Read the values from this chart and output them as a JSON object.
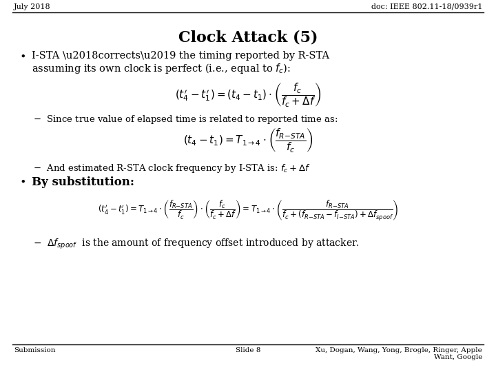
{
  "bg_color": "#ffffff",
  "header_left": "July 2018",
  "header_right": "doc: IEEE 802.11-18/0939r1",
  "title": "Clock Attack (5)",
  "footer_left": "Submission",
  "footer_center": "Slide 8",
  "footer_right": "Xu, Dogan, Wang, Yong, Brogle, Ringer, Apple\nWant, Google",
  "text_color": "#000000",
  "line_color": "#000000"
}
